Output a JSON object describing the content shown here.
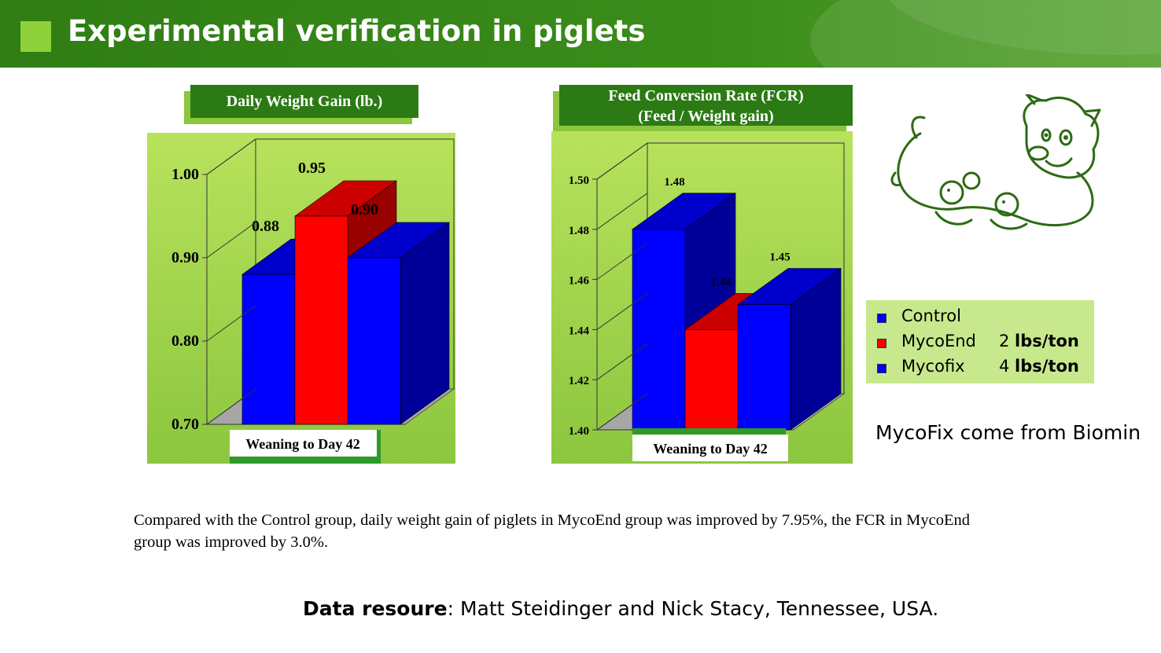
{
  "header": {
    "title": "Experimental verification in piglets"
  },
  "chart_data": [
    {
      "type": "bar",
      "title": "Daily Weight Gain (lb.)",
      "categories": [
        "Weaning to Day 42"
      ],
      "series": [
        {
          "name": "Control",
          "values": [
            0.88
          ]
        },
        {
          "name": "MycoEnd 2 lbs/ton",
          "values": [
            0.95
          ]
        },
        {
          "name": "Mycofix 4 lbs/ton",
          "values": [
            0.9
          ]
        }
      ],
      "ylim": [
        0.7,
        1.0
      ],
      "yticks": [
        "0.70",
        "0.80",
        "0.90",
        "1.00"
      ],
      "data_labels": [
        "0.88",
        "0.95",
        "0.90"
      ],
      "colors": [
        "#0000ff",
        "#ff0000",
        "#0000ff"
      ]
    },
    {
      "type": "bar",
      "title": "Feed Conversion Rate (FCR)",
      "subtitle": "(Feed / Weight gain)",
      "categories": [
        "Weaning to Day 42"
      ],
      "series": [
        {
          "name": "Control",
          "values": [
            1.48
          ]
        },
        {
          "name": "MycoEnd 2 lbs/ton",
          "values": [
            1.44
          ]
        },
        {
          "name": "Mycofix 4 lbs/ton",
          "values": [
            1.45
          ]
        }
      ],
      "ylim": [
        1.4,
        1.5
      ],
      "yticks": [
        "1.40",
        "1.42",
        "1.44",
        "1.46",
        "1.48",
        "1.50"
      ],
      "data_labels": [
        "1.48",
        "1.44",
        "1.45"
      ],
      "colors": [
        "#0000ff",
        "#ff0000",
        "#0000ff"
      ]
    }
  ],
  "legend": {
    "items": [
      {
        "name": "Control",
        "dose_num": "",
        "dose_unit": "",
        "color": "#0000ff"
      },
      {
        "name": "MycoEnd",
        "dose_num": "2 ",
        "dose_unit": "lbs/ton",
        "color": "#ff0000"
      },
      {
        "name": "Mycofix",
        "dose_num": " 4 ",
        "dose_unit": "lbs/ton",
        "color": "#0000ff"
      }
    ]
  },
  "note": "MycoFix come from Biomin",
  "summary": "Compared with the Control group, daily weight gain of piglets in MycoEnd group was improved by 7.95%, the FCR in MycoEnd group was improved by 3.0%.",
  "source": {
    "label": "Data resoure",
    "text": ": Matt Steidinger and Nick Stacy, Tennessee, USA."
  },
  "icons": {
    "illustration": "pig-family-illustration"
  }
}
